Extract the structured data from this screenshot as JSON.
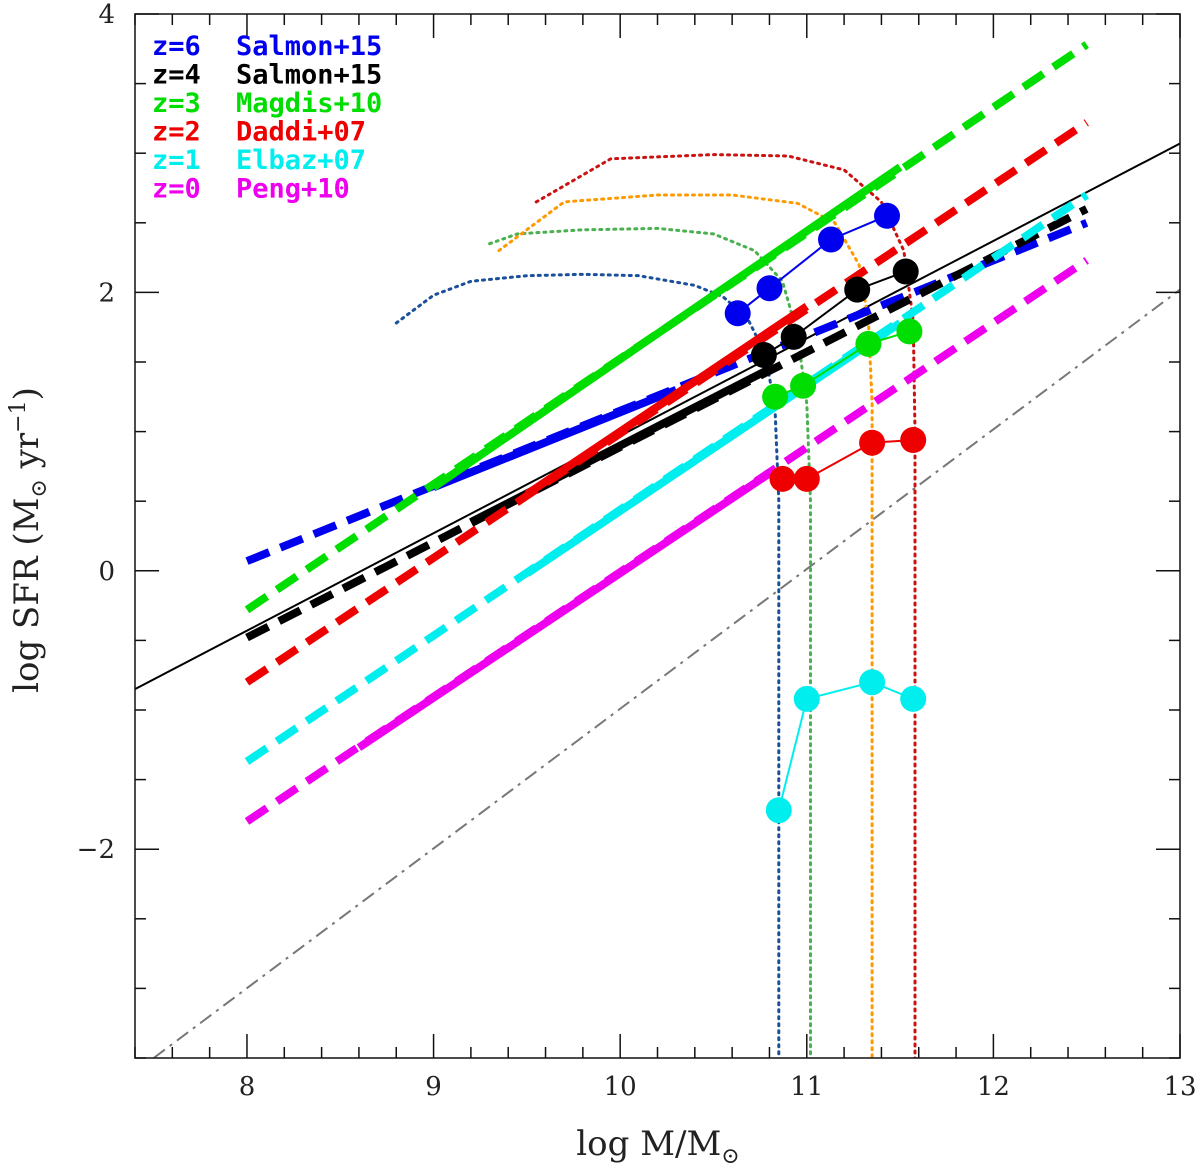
{
  "chart_data": {
    "type": "line",
    "xlabel": {
      "prefix": "log M/M",
      "sub": "⊙"
    },
    "ylabel": {
      "prefix": "log SFR (M",
      "sub": "⊙",
      "mid": " yr",
      "sup": "−1",
      "suffix": ")"
    },
    "xlim": [
      7.4,
      13.0
    ],
    "ylim": [
      -3.5,
      4.0
    ],
    "x_ticks": [
      8,
      9,
      10,
      11,
      12,
      13
    ],
    "y_ticks": [
      -2,
      0,
      2,
      4
    ],
    "x_tick_labels": [
      "8",
      "9",
      "10",
      "11",
      "12",
      "13"
    ],
    "y_tick_labels": [
      "−2",
      "0",
      "2",
      "4"
    ],
    "x_minor_step": 0.2,
    "y_minor_step": 0.5,
    "grid": false,
    "legend_position": "top-left",
    "legend": [
      {
        "z": "z=6",
        "ref": "Salmon+15",
        "color": "#0000ee"
      },
      {
        "z": "z=4",
        "ref": "Salmon+15",
        "color": "#000000"
      },
      {
        "z": "z=3",
        "ref": "Magdis+10",
        "color": "#00dd00"
      },
      {
        "z": "z=2",
        "ref": "Daddi+07",
        "color": "#ee0000"
      },
      {
        "z": "z=1",
        "ref": "Elbaz+07",
        "color": "#00eeee"
      },
      {
        "z": "z=0",
        "ref": "Peng+10",
        "color": "#ee00ee"
      }
    ],
    "relations": [
      {
        "name": "z=6",
        "color": "#0000ee",
        "dashed": [
          [
            8.0,
            0.07
          ],
          [
            12.5,
            2.5
          ]
        ],
        "solid": [
          [
            9.0,
            0.6
          ],
          [
            10.3,
            1.3
          ]
        ]
      },
      {
        "name": "z=4",
        "color": "#000000",
        "dashed": [
          [
            8.0,
            -0.48
          ],
          [
            12.5,
            2.6
          ]
        ],
        "solid": [
          [
            9.2,
            0.35
          ],
          [
            10.8,
            1.45
          ]
        ]
      },
      {
        "name": "z=3",
        "color": "#00dd00",
        "dashed": [
          [
            8.0,
            -0.28
          ],
          [
            12.5,
            3.78
          ]
        ],
        "solid": [
          [
            9.0,
            0.6
          ],
          [
            11.5,
            2.9
          ]
        ]
      },
      {
        "name": "z=2",
        "color": "#ee0000",
        "dashed": [
          [
            8.0,
            -0.8
          ],
          [
            12.5,
            3.22
          ]
        ],
        "solid": [
          [
            9.5,
            0.55
          ],
          [
            11.0,
            1.9
          ]
        ]
      },
      {
        "name": "z=1",
        "color": "#00eeee",
        "dashed": [
          [
            8.0,
            -1.37
          ],
          [
            12.5,
            2.7
          ]
        ],
        "solid": [
          [
            9.5,
            -0.02
          ],
          [
            11.5,
            1.78
          ]
        ]
      },
      {
        "name": "z=0",
        "color": "#ee00ee",
        "dashed": [
          [
            8.0,
            -1.8
          ],
          [
            12.5,
            2.23
          ]
        ],
        "solid": [
          [
            8.6,
            -1.27
          ],
          [
            10.8,
            0.7
          ]
        ]
      }
    ],
    "thin_solid_line": {
      "color": "#000000",
      "points": [
        [
          7.4,
          -0.85
        ],
        [
          13.0,
          3.07
        ]
      ]
    },
    "dashdot_line": {
      "color": "#777777",
      "points": [
        [
          7.5,
          -3.5
        ],
        [
          13.0,
          2.02
        ]
      ]
    },
    "points": [
      {
        "name": "z=6 points",
        "color": "#0000ee",
        "x": [
          10.63,
          10.8,
          11.13,
          11.43
        ],
        "y": [
          1.85,
          2.03,
          2.38,
          2.55
        ]
      },
      {
        "name": "z=4 points",
        "color": "#000000",
        "x": [
          10.77,
          10.93,
          11.27,
          11.53
        ],
        "y": [
          1.55,
          1.68,
          2.02,
          2.15
        ]
      },
      {
        "name": "z=3 points",
        "color": "#00dd00",
        "x": [
          10.83,
          10.98,
          11.33,
          11.55
        ],
        "y": [
          1.25,
          1.33,
          1.63,
          1.72
        ]
      },
      {
        "name": "z=2 points",
        "color": "#ee0000",
        "x": [
          10.87,
          11.0,
          11.35,
          11.57
        ],
        "y": [
          0.66,
          0.66,
          0.92,
          0.94
        ]
      },
      {
        "name": "z=1 points",
        "color": "#00eeee",
        "x": [
          10.85,
          11.0,
          11.35,
          11.57
        ],
        "y": [
          -1.72,
          -0.92,
          -0.8,
          -0.92
        ]
      }
    ],
    "tracks": [
      {
        "name": "track-1",
        "color": "#1a4f9a",
        "x": [
          8.8,
          9.0,
          9.2,
          9.5,
          9.8,
          10.1,
          10.4,
          10.55,
          10.68,
          10.78,
          10.83,
          10.85,
          10.85
        ],
        "y": [
          1.78,
          1.98,
          2.08,
          2.12,
          2.13,
          2.12,
          2.05,
          1.97,
          1.82,
          1.55,
          1.15,
          0.5,
          -3.5
        ]
      },
      {
        "name": "track-2",
        "color": "#4caf50",
        "x": [
          9.3,
          9.45,
          9.8,
          10.2,
          10.5,
          10.72,
          10.87,
          10.95,
          11.0,
          11.02,
          11.02
        ],
        "y": [
          2.35,
          2.42,
          2.45,
          2.46,
          2.42,
          2.3,
          2.08,
          1.7,
          1.2,
          0.5,
          -3.5
        ]
      },
      {
        "name": "track-3",
        "color": "#ff9900",
        "x": [
          9.35,
          9.7,
          10.2,
          10.6,
          10.95,
          11.15,
          11.28,
          11.33,
          11.35,
          11.35
        ],
        "y": [
          2.3,
          2.65,
          2.7,
          2.7,
          2.64,
          2.5,
          2.2,
          1.8,
          1.2,
          -3.5
        ]
      },
      {
        "name": "track-4",
        "color": "#cc1111",
        "x": [
          9.55,
          9.95,
          10.5,
          10.9,
          11.2,
          11.4,
          11.52,
          11.57,
          11.58,
          11.58
        ],
        "y": [
          2.65,
          2.96,
          2.99,
          2.98,
          2.88,
          2.65,
          2.3,
          1.8,
          1.0,
          -3.5
        ]
      }
    ]
  }
}
